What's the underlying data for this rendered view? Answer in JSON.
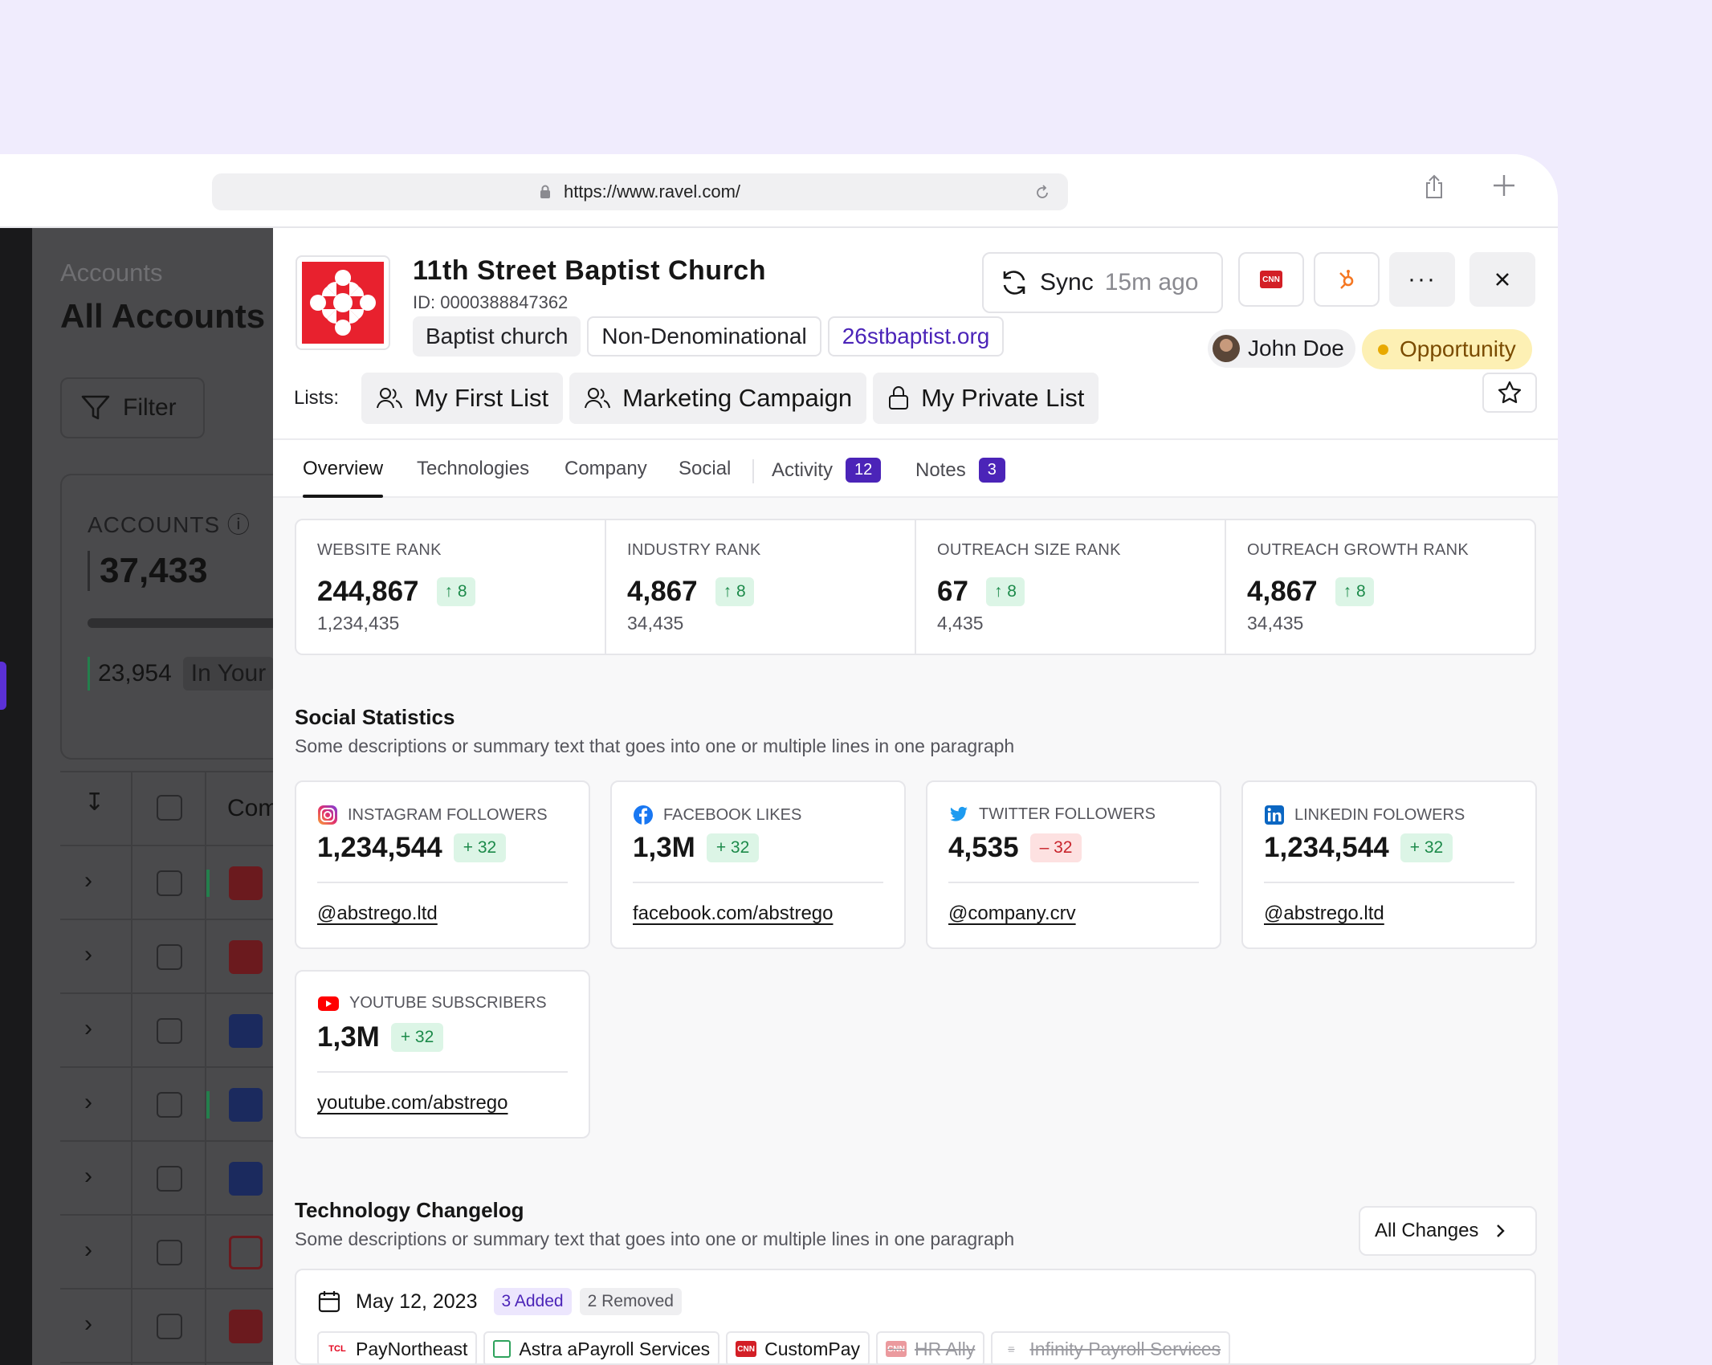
{
  "browser": {
    "url": "https://www.ravel.com/"
  },
  "background": {
    "breadcrumb": "Accounts",
    "title": "All Accounts",
    "filter_label": "Filter",
    "accounts_label": "ACCOUNTS",
    "accounts_count": "37,433",
    "in_count": "23,954",
    "in_label": "In Your",
    "column_label": "Com"
  },
  "company": {
    "name": "11th Street Baptist Church",
    "id": "ID: 0000388847362",
    "tags": [
      "Baptist church",
      "Non-Denominational"
    ],
    "website": "26stbaptist.org",
    "lists_label": "Lists:",
    "lists": [
      "My First List",
      "Marketing Campaign",
      "My Private List"
    ],
    "sync_label": "Sync",
    "sync_ago": "15m ago",
    "owner": "John Doe",
    "status": "Opportunity"
  },
  "tabs": [
    {
      "label": "Overview"
    },
    {
      "label": "Technologies"
    },
    {
      "label": "Company"
    },
    {
      "label": "Social"
    },
    {
      "label": "Activity",
      "count": "12"
    },
    {
      "label": "Notes",
      "count": "3"
    }
  ],
  "ranks": [
    {
      "label": "WEBSITE RANK",
      "value": "244,867",
      "change": "8",
      "prev": "1,234,435"
    },
    {
      "label": "INDUSTRY RANK",
      "value": "4,867",
      "change": "8",
      "prev": "34,435"
    },
    {
      "label": "OUTREACH SIZE RANK",
      "value": "67",
      "change": "8",
      "prev": "4,435"
    },
    {
      "label": "OUTREACH GROWTH RANK",
      "value": "4,867",
      "change": "8",
      "prev": "34,435"
    }
  ],
  "social": {
    "title": "Social Statistics",
    "description": "Some descriptions or summary text that goes into one or multiple lines in one paragraph",
    "cards": [
      {
        "label": "INSTAGRAM FOLLOWERS",
        "value": "1,234,544",
        "change": "+ 32",
        "handle": "@abstrego.ltd",
        "icon": "instagram-icon"
      },
      {
        "label": "FACEBOOK LIKES",
        "value": "1,3M",
        "change": "+ 32",
        "handle": "facebook.com/abstrego",
        "icon": "facebook-icon"
      },
      {
        "label": "TWITTER FOLLOWERS",
        "value": "4,535",
        "change": "– 32",
        "handle": "@company.crv",
        "icon": "twitter-icon"
      },
      {
        "label": "LINKEDIN FOLOWERS",
        "value": "1,234,544",
        "change": "+ 32",
        "handle": "@abstrego.ltd",
        "icon": "linkedin-icon"
      },
      {
        "label": "YOUTUBE SUBSCRIBERS",
        "value": "1,3M",
        "change": "+ 32",
        "handle": "youtube.com/abstrego",
        "icon": "youtube-icon"
      }
    ]
  },
  "changelog": {
    "title": "Technology Changelog",
    "description": "Some descriptions or summary text that goes into one or multiple lines in one paragraph",
    "all_label": "All Changes",
    "date": "May 12, 2023",
    "added": "3 Added",
    "removed": "2 Removed",
    "techs": [
      {
        "name": "PayNortheast",
        "logo": "TCL",
        "removed": false
      },
      {
        "name": "Astra aPayroll Services",
        "logo": "astra",
        "removed": false
      },
      {
        "name": "CustomPay",
        "logo": "CNN",
        "removed": false
      },
      {
        "name": "HR Ally",
        "logo": "CNN",
        "removed": true
      },
      {
        "name": "Infinity Payroll Services",
        "logo": "infinity",
        "removed": true
      }
    ]
  },
  "colors": {
    "accent": "#4b24b8",
    "positive": "#1c8a4a",
    "negative": "#c8242c",
    "status": "#fdf0b4"
  }
}
